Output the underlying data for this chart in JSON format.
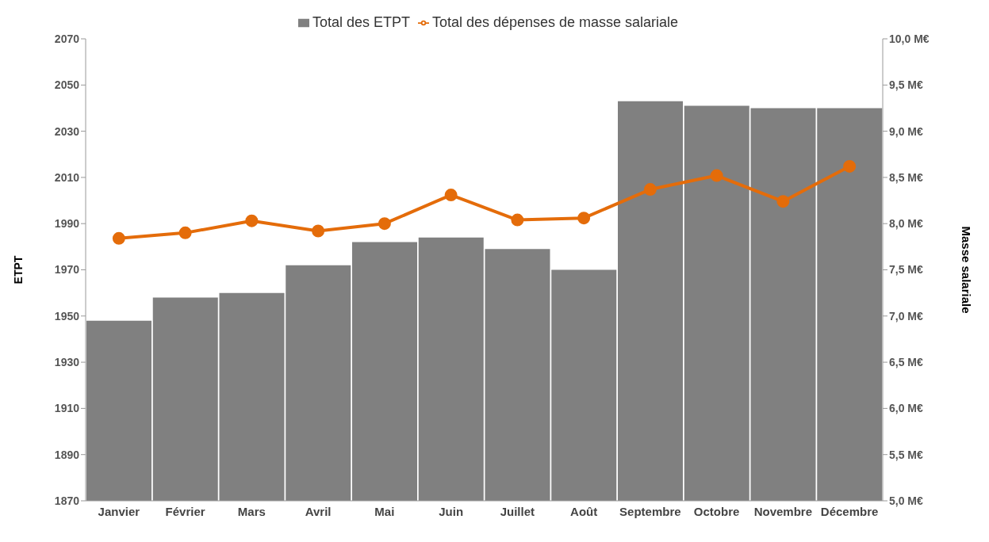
{
  "chart_data": {
    "type": "bar",
    "ylabel": "ETPT",
    "y2label": "Masse salariale",
    "categories": [
      "Janvier",
      "Février",
      "Mars",
      "Avril",
      "Mai",
      "Juin",
      "Juillet",
      "Août",
      "Septembre",
      "Octobre",
      "Novembre",
      "Décembre"
    ],
    "series": [
      {
        "name": "Total des ETPT",
        "color": "#808080",
        "values": [
          1948,
          1958,
          1960,
          1972,
          1982,
          1984,
          1979,
          1970,
          2043,
          2041,
          2040,
          2040
        ]
      },
      {
        "name": "Total des dépenses de masse salariale",
        "type": "line",
        "axis": "y2",
        "color": "#e46c0a",
        "marker": "circle",
        "values": [
          7.84,
          7.9,
          8.03,
          7.92,
          8.0,
          8.31,
          8.04,
          8.06,
          8.37,
          8.52,
          8.24,
          8.62
        ]
      }
    ],
    "ylim": [
      1870,
      2070
    ],
    "yticks": [
      1870,
      1890,
      1910,
      1930,
      1950,
      1970,
      1990,
      2010,
      2030,
      2050,
      2070
    ],
    "y2lim": [
      5,
      10
    ],
    "y2ticks": [
      {
        "value": 5,
        "label": "5,0 M€"
      },
      {
        "value": 5.5,
        "label": "5,5 M€"
      },
      {
        "value": 6,
        "label": "6,0 M€"
      },
      {
        "value": 6.5,
        "label": "6,5 M€"
      },
      {
        "value": 7,
        "label": "7,0 M€"
      },
      {
        "value": 7.5,
        "label": "7,5 M€"
      },
      {
        "value": 8,
        "label": "8,0 M€"
      },
      {
        "value": 8.5,
        "label": "8,5 M€"
      },
      {
        "value": 9,
        "label": "9,0 M€"
      },
      {
        "value": 9.5,
        "label": "9,5 M€"
      },
      {
        "value": 10,
        "label": "10,0 M€"
      }
    ],
    "grid": false,
    "legend": "top"
  }
}
